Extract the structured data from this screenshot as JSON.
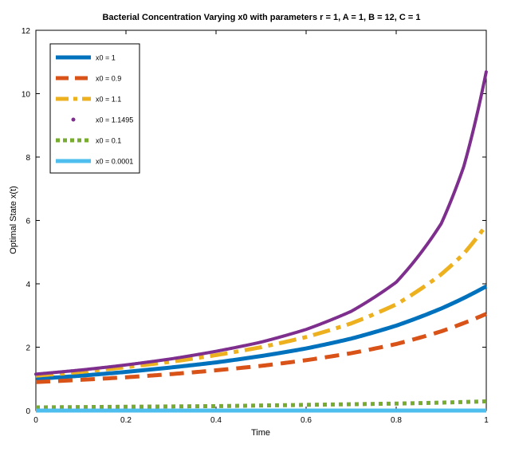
{
  "chart_data": {
    "type": "line",
    "title": "Bacterial Concentration Varying x0 with parameters r = 1, A = 1, B = 12, C = 1",
    "xlabel": "Time",
    "ylabel": "Optimal State x(t)",
    "xlim": [
      0,
      1
    ],
    "ylim": [
      0,
      12
    ],
    "xticks": [
      "0",
      "0.2",
      "0.4",
      "0.6",
      "0.8",
      "1"
    ],
    "yticks": [
      "0",
      "2",
      "4",
      "6",
      "8",
      "10",
      "12"
    ],
    "grid": false,
    "legend_position": "top-left",
    "x": [
      0,
      0.1,
      0.2,
      0.3,
      0.4,
      0.5,
      0.6,
      0.7,
      0.8,
      0.9,
      0.95,
      1.0
    ],
    "series": [
      {
        "name": "x0 = 1",
        "color": "#0072BD",
        "style": "solid",
        "values": [
          1.0,
          1.1,
          1.22,
          1.36,
          1.52,
          1.72,
          1.96,
          2.27,
          2.68,
          3.22,
          3.55,
          3.92
        ]
      },
      {
        "name": "x0 = 0.9",
        "color": "#D95319",
        "style": "dashed",
        "values": [
          0.9,
          0.97,
          1.05,
          1.15,
          1.27,
          1.41,
          1.59,
          1.81,
          2.1,
          2.5,
          2.76,
          3.05
        ]
      },
      {
        "name": "x0 = 1.1",
        "color": "#EDB120",
        "style": "dashdot",
        "values": [
          1.1,
          1.22,
          1.37,
          1.54,
          1.75,
          2.0,
          2.32,
          2.75,
          3.35,
          4.3,
          4.95,
          5.85
        ]
      },
      {
        "name": "x0 = 1.1495",
        "color": "#7E2F8E",
        "style": "dotted",
        "values": [
          1.1495,
          1.28,
          1.44,
          1.63,
          1.87,
          2.16,
          2.56,
          3.13,
          4.05,
          5.9,
          7.7,
          10.7
        ]
      },
      {
        "name": "x0 = 0.1",
        "color": "#77AC30",
        "style": "dotted",
        "values": [
          0.1,
          0.11,
          0.12,
          0.13,
          0.14,
          0.16,
          0.18,
          0.2,
          0.22,
          0.25,
          0.27,
          0.29
        ]
      },
      {
        "name": "x0 = 0.0001",
        "color": "#4DBEEE",
        "style": "solid",
        "values": [
          0.0001,
          0.0001,
          0.0001,
          0.0001,
          0.0001,
          0.0001,
          0.0002,
          0.0002,
          0.0002,
          0.0003,
          0.0003,
          0.0003
        ]
      }
    ]
  }
}
